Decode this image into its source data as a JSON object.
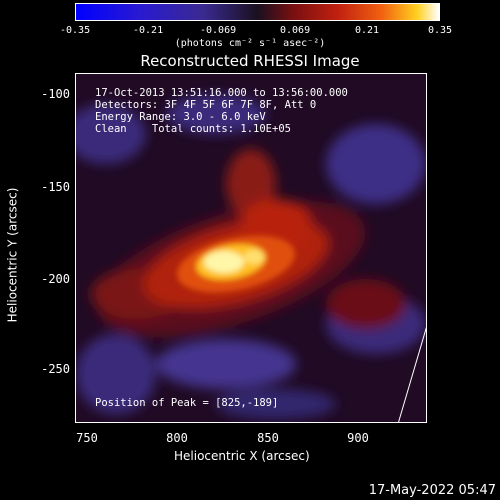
{
  "colorbar": {
    "ticks": [
      "-0.35",
      "-0.21",
      "-0.069",
      "0.069",
      "0.21",
      "0.35"
    ],
    "units": "(photons cm⁻² s⁻¹ asec⁻²)"
  },
  "title": "Reconstructed RHESSI Image",
  "info": {
    "time": "17-Oct-2013 13:51:16.000 to 13:56:00.000",
    "detectors": "Detectors: 3F 4F 5F 6F 7F 8F, Att 0",
    "energy": "Energy Range: 3.0 - 6.0 keV",
    "clean": "Clean    Total counts: 1.10E+05",
    "peak": "Position of Peak = [825,-189]"
  },
  "axes": {
    "x_label": "Heliocentric X (arcsec)",
    "y_label": "Heliocentric Y (arcsec)",
    "x_ticks": [
      "750",
      "800",
      "850",
      "900"
    ],
    "y_ticks": [
      "-100",
      "-150",
      "-200",
      "-250"
    ]
  },
  "footer": {
    "date": "17-May-2022 05:47"
  }
}
